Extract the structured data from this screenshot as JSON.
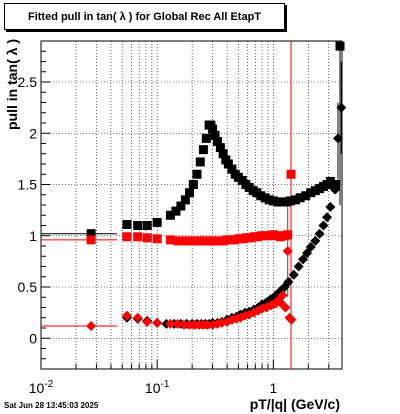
{
  "chart_data": {
    "type": "scatter",
    "title": "Fitted pull in tan( λ ) for Global Rec All EtapT",
    "xlabel": "pT/|q| (GeV/c)",
    "ylabel": "pull in tan( λ )",
    "x_scale": "log",
    "xlim": [
      0.01,
      3.9
    ],
    "ylim": [
      -0.3,
      2.9
    ],
    "y_ticks": [
      "0",
      "0.5",
      "1",
      "1.5",
      "2",
      "2.5"
    ],
    "x_ticks": [
      {
        "base": "10",
        "exp": "-2",
        "value": 0.01
      },
      {
        "base": "10",
        "exp": "-1",
        "value": 0.1
      },
      {
        "base": "1",
        "exp": "",
        "value": 1
      }
    ],
    "grid": true,
    "colors": {
      "series_black": "#000000",
      "series_red": "#ff0000"
    },
    "series": [
      {
        "color": "#000000",
        "marker": "square",
        "points": [
          [
            0.027,
            1.02
          ],
          [
            0.055,
            1.11
          ],
          [
            0.068,
            1.1
          ],
          [
            0.082,
            1.1
          ],
          [
            0.1,
            1.13
          ],
          [
            0.13,
            1.2
          ],
          [
            0.145,
            1.24
          ],
          [
            0.16,
            1.29
          ],
          [
            0.175,
            1.35
          ],
          [
            0.19,
            1.42
          ],
          [
            0.205,
            1.5
          ],
          [
            0.22,
            1.6
          ],
          [
            0.235,
            1.72
          ],
          [
            0.25,
            1.84
          ],
          [
            0.265,
            1.95
          ],
          [
            0.28,
            2.08
          ],
          [
            0.29,
            2.08
          ],
          [
            0.3,
            2.04
          ],
          [
            0.315,
            1.98
          ],
          [
            0.33,
            1.92
          ],
          [
            0.35,
            1.86
          ],
          [
            0.37,
            1.8
          ],
          [
            0.39,
            1.74
          ],
          [
            0.41,
            1.7
          ],
          [
            0.44,
            1.65
          ],
          [
            0.47,
            1.6
          ],
          [
            0.5,
            1.57
          ],
          [
            0.54,
            1.54
          ],
          [
            0.58,
            1.5
          ],
          [
            0.62,
            1.47
          ],
          [
            0.67,
            1.44
          ],
          [
            0.72,
            1.42
          ],
          [
            0.78,
            1.39
          ],
          [
            0.85,
            1.37
          ],
          [
            0.92,
            1.35
          ],
          [
            1.0,
            1.34
          ],
          [
            1.1,
            1.33
          ],
          [
            1.2,
            1.33
          ],
          [
            1.3,
            1.33
          ],
          [
            1.4,
            1.34
          ],
          [
            1.55,
            1.35
          ],
          [
            1.7,
            1.37
          ],
          [
            1.9,
            1.39
          ],
          [
            2.1,
            1.42
          ],
          [
            2.3,
            1.44
          ],
          [
            2.5,
            1.46
          ],
          [
            2.7,
            1.48
          ],
          [
            2.9,
            1.5
          ],
          [
            3.1,
            1.53
          ],
          [
            3.4,
            1.5
          ],
          [
            3.75,
            2.85
          ]
        ],
        "error_x": [
          0.006,
          0.004,
          0.004,
          0.004,
          0.005
        ]
      },
      {
        "color": "#000000",
        "marker": "diamond",
        "points": [
          [
            0.055,
            0.2
          ],
          [
            0.068,
            0.19
          ],
          [
            0.082,
            0.17
          ],
          [
            0.1,
            0.15
          ],
          [
            0.12,
            0.14
          ],
          [
            0.14,
            0.14
          ],
          [
            0.16,
            0.14
          ],
          [
            0.18,
            0.14
          ],
          [
            0.2,
            0.14
          ],
          [
            0.22,
            0.14
          ],
          [
            0.24,
            0.14
          ],
          [
            0.26,
            0.14
          ],
          [
            0.28,
            0.14
          ],
          [
            0.3,
            0.15
          ],
          [
            0.33,
            0.15
          ],
          [
            0.36,
            0.16
          ],
          [
            0.4,
            0.18
          ],
          [
            0.44,
            0.2
          ],
          [
            0.48,
            0.21
          ],
          [
            0.52,
            0.23
          ],
          [
            0.57,
            0.25
          ],
          [
            0.62,
            0.26
          ],
          [
            0.68,
            0.28
          ],
          [
            0.74,
            0.3
          ],
          [
            0.8,
            0.33
          ],
          [
            0.87,
            0.35
          ],
          [
            0.95,
            0.38
          ],
          [
            1.05,
            0.42
          ],
          [
            1.15,
            0.46
          ],
          [
            1.25,
            0.5
          ],
          [
            1.35,
            0.55
          ],
          [
            1.5,
            0.62
          ],
          [
            1.65,
            0.7
          ],
          [
            1.8,
            0.77
          ],
          [
            1.95,
            0.83
          ],
          [
            2.1,
            0.89
          ],
          [
            2.3,
            0.95
          ],
          [
            2.5,
            1.02
          ],
          [
            2.7,
            1.1
          ],
          [
            2.9,
            1.18
          ],
          [
            3.1,
            1.28
          ],
          [
            3.4,
            1.45
          ],
          [
            3.6,
            1.95
          ],
          [
            3.85,
            2.25
          ]
        ]
      },
      {
        "color": "#ff0000",
        "marker": "square",
        "points": [
          [
            0.027,
            0.96
          ],
          [
            0.055,
            0.99
          ],
          [
            0.068,
            0.99
          ],
          [
            0.082,
            0.98
          ],
          [
            0.1,
            0.97
          ],
          [
            0.13,
            0.96
          ],
          [
            0.15,
            0.95
          ],
          [
            0.17,
            0.95
          ],
          [
            0.19,
            0.95
          ],
          [
            0.21,
            0.95
          ],
          [
            0.23,
            0.95
          ],
          [
            0.25,
            0.95
          ],
          [
            0.27,
            0.95
          ],
          [
            0.29,
            0.95
          ],
          [
            0.31,
            0.95
          ],
          [
            0.34,
            0.95
          ],
          [
            0.37,
            0.95
          ],
          [
            0.4,
            0.96
          ],
          [
            0.43,
            0.96
          ],
          [
            0.46,
            0.96
          ],
          [
            0.5,
            0.97
          ],
          [
            0.54,
            0.97
          ],
          [
            0.58,
            0.98
          ],
          [
            0.63,
            0.98
          ],
          [
            0.68,
            0.99
          ],
          [
            0.73,
            0.99
          ],
          [
            0.79,
            1.0
          ],
          [
            0.85,
            1.0
          ],
          [
            0.92,
            1.0
          ],
          [
            1.0,
            1.01
          ],
          [
            1.08,
            1.0
          ],
          [
            1.15,
            0.99
          ],
          [
            1.25,
            1.0
          ],
          [
            1.33,
            1.01
          ],
          [
            1.42,
            1.6
          ]
        ]
      },
      {
        "color": "#ff0000",
        "marker": "diamond",
        "points": [
          [
            0.027,
            0.12
          ],
          [
            0.055,
            0.22
          ],
          [
            0.068,
            0.2
          ],
          [
            0.082,
            0.16
          ],
          [
            0.1,
            0.15
          ],
          [
            0.13,
            0.14
          ],
          [
            0.15,
            0.14
          ],
          [
            0.17,
            0.13
          ],
          [
            0.19,
            0.13
          ],
          [
            0.21,
            0.13
          ],
          [
            0.23,
            0.13
          ],
          [
            0.25,
            0.13
          ],
          [
            0.27,
            0.13
          ],
          [
            0.3,
            0.13
          ],
          [
            0.33,
            0.14
          ],
          [
            0.36,
            0.15
          ],
          [
            0.4,
            0.16
          ],
          [
            0.44,
            0.18
          ],
          [
            0.48,
            0.19
          ],
          [
            0.52,
            0.2
          ],
          [
            0.57,
            0.22
          ],
          [
            0.62,
            0.23
          ],
          [
            0.68,
            0.25
          ],
          [
            0.74,
            0.27
          ],
          [
            0.8,
            0.29
          ],
          [
            0.87,
            0.3
          ],
          [
            0.95,
            0.32
          ],
          [
            1.0,
            0.33
          ],
          [
            1.05,
            0.34
          ],
          [
            1.1,
            0.37
          ],
          [
            1.15,
            0.35
          ],
          [
            1.2,
            0.42
          ],
          [
            1.27,
            0.3
          ],
          [
            1.33,
            0.85
          ],
          [
            1.38,
            0.2
          ],
          [
            1.43,
            0.18
          ]
        ]
      }
    ]
  },
  "footer": {
    "timestamp": "Sat Jun 28 13:45:03 2025"
  }
}
